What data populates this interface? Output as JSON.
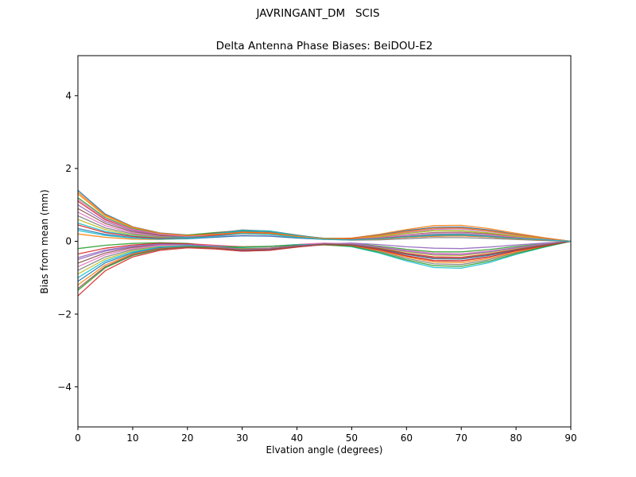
{
  "window": {
    "background": "#ffffff",
    "foreground": "#000000"
  },
  "chart": {
    "suptitle": "JAVRINGANT_DM   SCIS",
    "title": "Delta Antenna Phase Biases: BeiDOU-E2",
    "xlabel": "Elvation angle (degrees)",
    "ylabel": "Bias from mean (mm)"
  },
  "chart_data": {
    "type": "line",
    "suptitle": "JAVRINGANT_DM   SCIS",
    "title": "Delta Antenna Phase Biases: BeiDOU-E2",
    "xlabel": "Elvation angle (degrees)",
    "ylabel": "Bias from mean (mm)",
    "xlim": [
      0,
      90
    ],
    "ylim": [
      -5.1,
      5.1
    ],
    "xticks": [
      0,
      10,
      20,
      30,
      40,
      50,
      60,
      70,
      80,
      90
    ],
    "yticks": [
      -4,
      -2,
      0,
      2,
      4
    ],
    "grid": false,
    "legend": "none",
    "line_width": 1.3,
    "x": [
      0,
      5,
      10,
      15,
      20,
      25,
      30,
      35,
      40,
      45,
      50,
      55,
      60,
      65,
      70,
      75,
      80,
      85,
      90
    ],
    "series": [
      {
        "name": "line-01",
        "color": "#1f77b4",
        "values": [
          1.4,
          0.75,
          0.4,
          0.23,
          0.17,
          0.21,
          0.27,
          0.25,
          0.15,
          0.08,
          0.08,
          0.15,
          0.25,
          0.33,
          0.34,
          0.27,
          0.17,
          0.08,
          0
        ]
      },
      {
        "name": "line-02",
        "color": "#ff7f0e",
        "values": [
          1.3,
          0.7,
          0.38,
          0.21,
          0.15,
          0.18,
          0.22,
          0.2,
          0.12,
          0.07,
          0.09,
          0.19,
          0.32,
          0.43,
          0.44,
          0.35,
          0.22,
          0.1,
          0
        ]
      },
      {
        "name": "line-03",
        "color": "#2ca02c",
        "values": [
          1.2,
          0.65,
          0.35,
          0.2,
          0.17,
          0.24,
          0.29,
          0.28,
          0.16,
          0.08,
          0.07,
          0.13,
          0.22,
          0.29,
          0.29,
          0.23,
          0.14,
          0.07,
          0
        ]
      },
      {
        "name": "line-04",
        "color": "#d62728",
        "values": [
          1.1,
          0.59,
          0.32,
          0.18,
          0.15,
          0.2,
          0.25,
          0.24,
          0.13,
          0.06,
          0.04,
          0.06,
          0.11,
          0.14,
          0.15,
          0.12,
          0.07,
          0.03,
          0
        ]
      },
      {
        "name": "line-05",
        "color": "#9467bd",
        "values": [
          1.0,
          0.54,
          0.29,
          0.16,
          0.13,
          0.17,
          0.22,
          0.2,
          0.12,
          0.07,
          0.08,
          0.17,
          0.29,
          0.38,
          0.39,
          0.31,
          0.19,
          0.09,
          0
        ]
      },
      {
        "name": "line-06",
        "color": "#8c564b",
        "values": [
          0.9,
          0.49,
          0.26,
          0.16,
          0.14,
          0.22,
          0.31,
          0.28,
          0.17,
          0.07,
          0.06,
          0.11,
          0.18,
          0.24,
          0.25,
          0.2,
          0.12,
          0.06,
          0
        ]
      },
      {
        "name": "line-07",
        "color": "#e377c2",
        "values": [
          0.8,
          0.43,
          0.23,
          0.13,
          0.1,
          0.13,
          0.16,
          0.15,
          0.09,
          0.05,
          0.07,
          0.15,
          0.25,
          0.33,
          0.34,
          0.27,
          0.17,
          0.08,
          0
        ]
      },
      {
        "name": "line-08",
        "color": "#7f7f7f",
        "values": [
          0.7,
          0.37,
          0.2,
          0.12,
          0.12,
          0.18,
          0.26,
          0.24,
          0.14,
          0.06,
          0.03,
          0.04,
          0.07,
          0.1,
          0.1,
          0.08,
          0.05,
          0.02,
          0
        ]
      },
      {
        "name": "line-09",
        "color": "#bcbd22",
        "values": [
          0.6,
          0.32,
          0.17,
          0.1,
          0.1,
          0.15,
          0.21,
          0.19,
          0.11,
          0.06,
          0.06,
          0.13,
          0.22,
          0.29,
          0.29,
          0.23,
          0.14,
          0.07,
          0
        ]
      },
      {
        "name": "line-10",
        "color": "#17becf",
        "values": [
          0.5,
          0.27,
          0.15,
          0.09,
          0.11,
          0.2,
          0.3,
          0.28,
          0.16,
          0.07,
          0.05,
          0.09,
          0.14,
          0.19,
          0.2,
          0.16,
          0.1,
          0.05,
          0
        ]
      },
      {
        "name": "line-11",
        "color": "#1f77b4",
        "values": [
          0.35,
          0.19,
          0.1,
          0.06,
          0.07,
          0.11,
          0.15,
          0.14,
          0.09,
          0.06,
          0.08,
          0.17,
          0.29,
          0.38,
          0.39,
          0.31,
          0.19,
          0.09,
          0
        ]
      },
      {
        "name": "line-12",
        "color": "#ff7f0e",
        "values": [
          0.2,
          0.11,
          0.06,
          0.05,
          0.08,
          0.16,
          0.25,
          0.23,
          0.14,
          0.06,
          0.04,
          0.06,
          0.11,
          0.14,
          0.15,
          0.12,
          0.07,
          0.03,
          0
        ]
      },
      {
        "name": "line-13",
        "color": "#2ca02c",
        "values": [
          -0.2,
          -0.11,
          -0.06,
          -0.04,
          -0.06,
          -0.13,
          -0.2,
          -0.19,
          -0.11,
          -0.06,
          -0.06,
          -0.13,
          -0.22,
          -0.29,
          -0.29,
          -0.23,
          -0.14,
          -0.07,
          0
        ]
      },
      {
        "name": "line-14",
        "color": "#d62728",
        "values": [
          -0.35,
          -0.19,
          -0.1,
          -0.06,
          -0.07,
          -0.11,
          -0.15,
          -0.14,
          -0.09,
          -0.06,
          -0.09,
          -0.19,
          -0.33,
          -0.43,
          -0.44,
          -0.35,
          -0.22,
          -0.1,
          0
        ]
      },
      {
        "name": "line-15",
        "color": "#9467bd",
        "values": [
          -0.5,
          -0.27,
          -0.15,
          -0.09,
          -0.1,
          -0.17,
          -0.25,
          -0.23,
          -0.14,
          -0.07,
          -0.05,
          -0.09,
          -0.15,
          -0.19,
          -0.2,
          -0.16,
          -0.1,
          -0.05,
          0
        ]
      },
      {
        "name": "line-16",
        "color": "#8c564b",
        "values": [
          -0.6,
          -0.32,
          -0.17,
          -0.1,
          -0.1,
          -0.15,
          -0.21,
          -0.19,
          -0.12,
          -0.07,
          -0.11,
          -0.23,
          -0.4,
          -0.53,
          -0.54,
          -0.43,
          -0.26,
          -0.13,
          0
        ]
      },
      {
        "name": "line-17",
        "color": "#e377c2",
        "values": [
          -0.7,
          -0.37,
          -0.2,
          -0.11,
          -0.09,
          -0.12,
          -0.16,
          -0.15,
          -0.09,
          -0.05,
          -0.07,
          -0.15,
          -0.25,
          -0.33,
          -0.34,
          -0.27,
          -0.17,
          -0.08,
          0
        ]
      },
      {
        "name": "line-18",
        "color": "#7f7f7f",
        "values": [
          -0.8,
          -0.43,
          -0.23,
          -0.14,
          -0.13,
          -0.19,
          -0.26,
          -0.24,
          -0.15,
          -0.09,
          -0.13,
          -0.27,
          -0.47,
          -0.62,
          -0.64,
          -0.51,
          -0.31,
          -0.15,
          0
        ]
      },
      {
        "name": "line-19",
        "color": "#bcbd22",
        "values": [
          -0.9,
          -0.49,
          -0.26,
          -0.15,
          -0.12,
          -0.16,
          -0.21,
          -0.2,
          -0.12,
          -0.07,
          -0.08,
          -0.17,
          -0.29,
          -0.38,
          -0.39,
          -0.31,
          -0.19,
          -0.09,
          0
        ]
      },
      {
        "name": "line-20",
        "color": "#17becf",
        "values": [
          -1.0,
          -0.54,
          -0.29,
          -0.16,
          -0.12,
          -0.14,
          -0.17,
          -0.14,
          -0.09,
          -0.09,
          -0.15,
          -0.32,
          -0.54,
          -0.72,
          -0.74,
          -0.59,
          -0.36,
          -0.17,
          0
        ]
      },
      {
        "name": "line-21",
        "color": "#1f77b4",
        "values": [
          -1.1,
          -0.59,
          -0.32,
          -0.18,
          -0.15,
          -0.2,
          -0.27,
          -0.25,
          -0.15,
          -0.09,
          -0.1,
          -0.21,
          -0.36,
          -0.48,
          -0.49,
          -0.39,
          -0.24,
          -0.12,
          0
        ]
      },
      {
        "name": "line-22",
        "color": "#ff7f0e",
        "values": [
          -1.2,
          -0.65,
          -0.35,
          -0.2,
          -0.15,
          -0.18,
          -0.22,
          -0.2,
          -0.12,
          -0.08,
          -0.12,
          -0.25,
          -0.43,
          -0.57,
          -0.59,
          -0.47,
          -0.29,
          -0.14,
          0
        ]
      },
      {
        "name": "line-23",
        "color": "#2ca02c",
        "values": [
          -1.35,
          -0.73,
          -0.39,
          -0.22,
          -0.15,
          -0.15,
          -0.16,
          -0.14,
          -0.1,
          -0.1,
          -0.14,
          -0.3,
          -0.51,
          -0.67,
          -0.69,
          -0.55,
          -0.34,
          -0.16,
          0
        ]
      },
      {
        "name": "line-24",
        "color": "#d62728",
        "values": [
          -1.5,
          -0.81,
          -0.43,
          -0.25,
          -0.18,
          -0.21,
          -0.27,
          -0.25,
          -0.16,
          -0.09,
          -0.11,
          -0.23,
          -0.4,
          -0.53,
          -0.54,
          -0.43,
          -0.26,
          -0.13,
          0
        ]
      },
      {
        "name": "line-25",
        "color": "#e377c2",
        "values": [
          1.15,
          0.62,
          0.33,
          0.19,
          0.14,
          0.18,
          0.23,
          0.21,
          0.13,
          0.07,
          0.06,
          0.1,
          0.17,
          0.22,
          0.23,
          0.18,
          0.11,
          0.05,
          0
        ]
      },
      {
        "name": "line-26",
        "color": "#d62728",
        "values": [
          0.45,
          0.24,
          0.13,
          0.08,
          0.09,
          0.16,
          0.24,
          0.22,
          0.13,
          0.06,
          0.05,
          0.08,
          0.13,
          0.17,
          0.18,
          0.14,
          0.09,
          0.04,
          0
        ]
      },
      {
        "name": "line-27",
        "color": "#9467bd",
        "values": [
          -0.45,
          -0.24,
          -0.13,
          -0.08,
          -0.09,
          -0.15,
          -0.22,
          -0.2,
          -0.12,
          -0.07,
          -0.08,
          -0.16,
          -0.27,
          -0.36,
          -0.37,
          -0.29,
          -0.18,
          -0.09,
          0
        ]
      },
      {
        "name": "line-28",
        "color": "#8c564b",
        "values": [
          -1.3,
          -0.7,
          -0.37,
          -0.21,
          -0.16,
          -0.19,
          -0.24,
          -0.22,
          -0.14,
          -0.08,
          -0.1,
          -0.2,
          -0.35,
          -0.46,
          -0.47,
          -0.37,
          -0.23,
          -0.11,
          0
        ]
      },
      {
        "name": "line-29",
        "color": "#ff7f0e",
        "values": [
          1.35,
          0.72,
          0.39,
          0.22,
          0.16,
          0.19,
          0.24,
          0.22,
          0.13,
          0.07,
          0.08,
          0.16,
          0.27,
          0.36,
          0.37,
          0.29,
          0.18,
          0.09,
          0
        ]
      },
      {
        "name": "line-30",
        "color": "#17becf",
        "values": [
          0.3,
          0.16,
          0.09,
          0.06,
          0.08,
          0.14,
          0.21,
          0.19,
          0.11,
          0.05,
          0.04,
          0.07,
          0.12,
          0.16,
          0.17,
          0.13,
          0.08,
          0.04,
          0
        ]
      }
    ]
  }
}
